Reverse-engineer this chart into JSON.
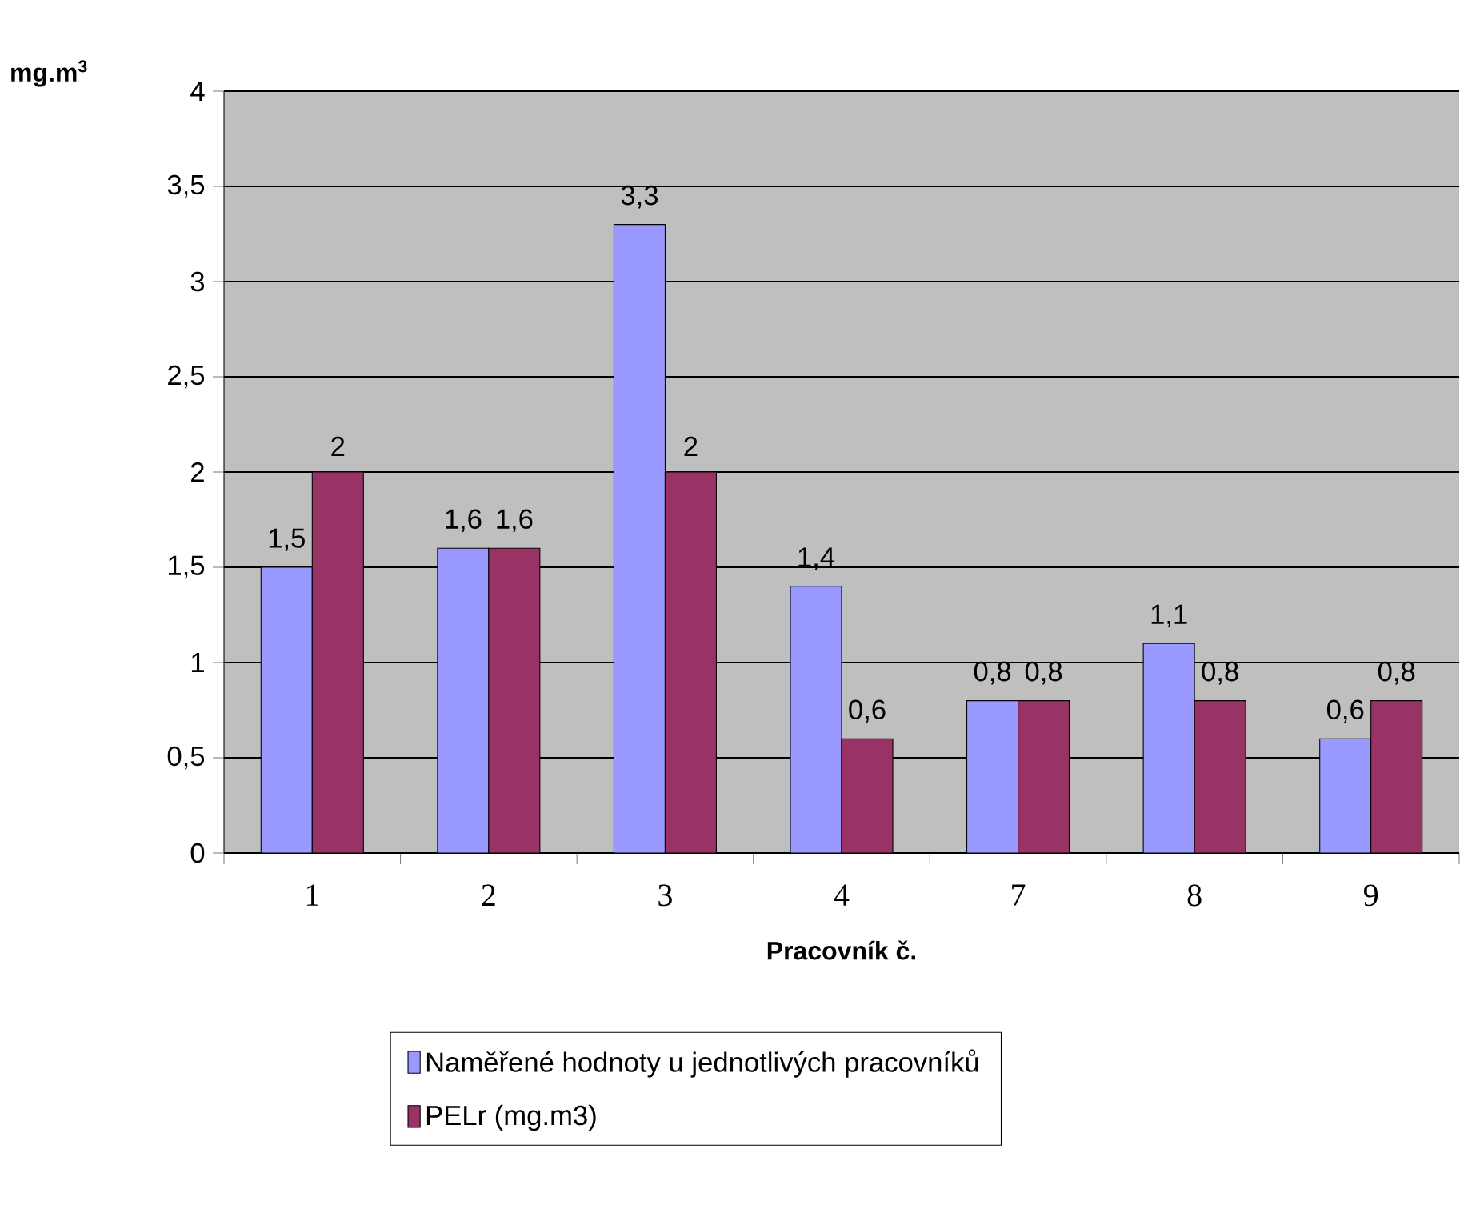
{
  "chart_data": {
    "type": "bar",
    "ylabel": "mg.m$^{3}$",
    "xlabel": "Pracovník č.",
    "categories": [
      "1",
      "2",
      "3",
      "4",
      "7",
      "8",
      "9"
    ],
    "series": [
      {
        "name": "Naměřené hodnoty u jednotlivých pracovníků",
        "color": "#9999ff",
        "values": [
          1.5,
          1.6,
          3.3,
          1.4,
          0.8,
          1.1,
          0.6
        ],
        "value_labels": [
          "1,5",
          "1,6",
          "3,3",
          "1,4",
          "0,8",
          "1,1",
          "0,6"
        ]
      },
      {
        "name": "PELr (mg.m3)",
        "color": "#993366",
        "values": [
          2,
          1.6,
          2,
          0.6,
          0.8,
          0.8,
          0.8
        ],
        "value_labels": [
          "2",
          "1,6",
          "2",
          "0,6",
          "0,8",
          "0,8",
          "0,8"
        ]
      }
    ],
    "ylim": [
      0,
      4
    ],
    "yticks": [
      0,
      {
        "value": 0.5,
        "label": "0,5"
      },
      1,
      {
        "value": 1.5,
        "label": "1,5"
      },
      2,
      {
        "value": 2.5,
        "label": "2,5"
      },
      3,
      {
        "value": 3.5,
        "label": "3,5"
      },
      4
    ],
    "grid": "y",
    "legend": "bottom"
  }
}
